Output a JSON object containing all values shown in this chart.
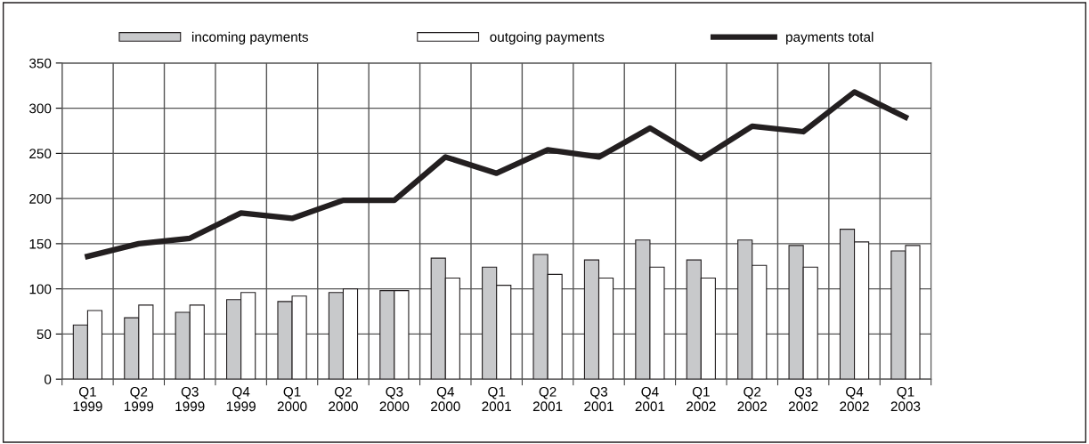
{
  "chart_data": {
    "type": "bar",
    "categories": [
      "Q1\n1999",
      "Q2\n1999",
      "Q3\n1999",
      "Q4\n1999",
      "Q1\n2000",
      "Q2\n2000",
      "Q3\n2000",
      "Q4\n2000",
      "Q1\n2001",
      "Q2\n2001",
      "Q3\n2001",
      "Q4\n2001",
      "Q1\n2002",
      "Q2\n2002",
      "Q3\n2002",
      "Q4\n2002",
      "Q1\n2003"
    ],
    "series": [
      {
        "name": "incoming payments",
        "color": "#c8c9cb",
        "values": [
          60,
          68,
          74,
          88,
          86,
          96,
          98,
          134,
          124,
          138,
          132,
          154,
          132,
          154,
          148,
          166,
          142
        ]
      },
      {
        "name": "outgoing payments",
        "color": "#ffffff",
        "values": [
          76,
          82,
          82,
          96,
          92,
          100,
          98,
          112,
          104,
          116,
          112,
          124,
          112,
          126,
          124,
          152,
          148
        ]
      },
      {
        "name": "payments total",
        "type": "line",
        "color": "#231f20",
        "values": [
          136,
          150,
          156,
          184,
          178,
          198,
          198,
          246,
          228,
          254,
          246,
          278,
          244,
          280,
          274,
          318,
          290
        ]
      }
    ],
    "ylim": [
      0,
      350
    ],
    "yticks": [
      0,
      50,
      100,
      150,
      200,
      250,
      300,
      350
    ],
    "grid": true,
    "legend": "top",
    "marker": "none",
    "line_style": "solid"
  }
}
